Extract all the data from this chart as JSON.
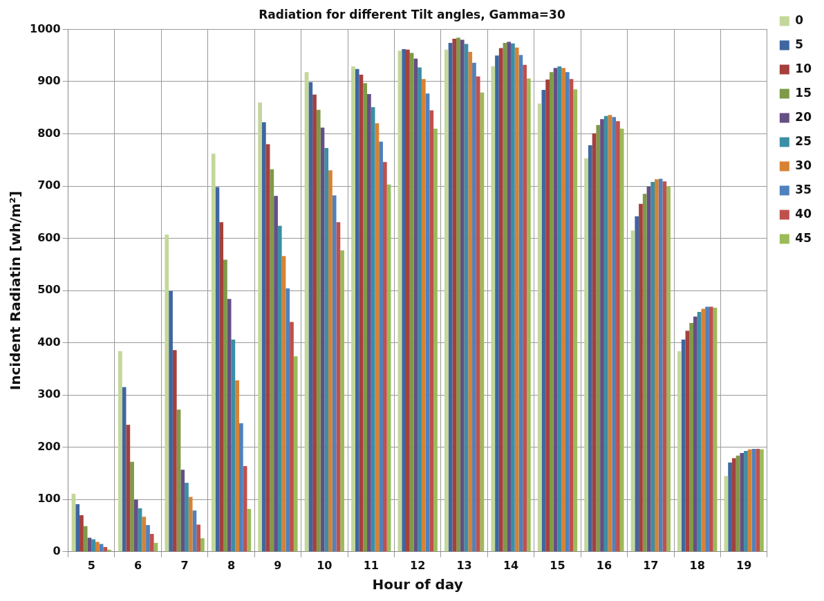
{
  "chart_data": {
    "type": "bar",
    "title": "Radiation for different Tilt angles, Gamma=30",
    "xlabel": "Hour of day",
    "ylabel": "Incident Radiatin [wh/m²]",
    "categories": [
      "5",
      "6",
      "7",
      "8",
      "9",
      "10",
      "11",
      "12",
      "13",
      "14",
      "15",
      "16",
      "17",
      "18",
      "19"
    ],
    "series": [
      {
        "name": "0",
        "color": "#c4d79b",
        "values": [
          111,
          384,
          607,
          762,
          860,
          918,
          929,
          959,
          961,
          929,
          858,
          753,
          615,
          384,
          145
        ]
      },
      {
        "name": "5",
        "color": "#3f66a0",
        "values": [
          91,
          315,
          499,
          698,
          822,
          899,
          924,
          962,
          974,
          950,
          884,
          778,
          642,
          406,
          171
        ]
      },
      {
        "name": "10",
        "color": "#a5403d",
        "values": [
          70,
          243,
          386,
          631,
          780,
          875,
          913,
          961,
          982,
          964,
          904,
          801,
          666,
          423,
          179
        ]
      },
      {
        "name": "15",
        "color": "#7f9a48",
        "values": [
          49,
          172,
          272,
          559,
          732,
          846,
          897,
          955,
          984,
          974,
          918,
          817,
          685,
          438,
          184
        ]
      },
      {
        "name": "20",
        "color": "#654f85",
        "values": [
          27,
          100,
          157,
          484,
          681,
          812,
          876,
          944,
          980,
          976,
          926,
          828,
          699,
          450,
          189
        ]
      },
      {
        "name": "25",
        "color": "#3b8fa5",
        "values": [
          24,
          83,
          132,
          406,
          624,
          773,
          851,
          927,
          972,
          973,
          929,
          834,
          708,
          459,
          193
        ]
      },
      {
        "name": "30",
        "color": "#d78234",
        "values": [
          19,
          67,
          105,
          328,
          566,
          730,
          820,
          905,
          957,
          965,
          926,
          836,
          713,
          465,
          196
        ]
      },
      {
        "name": "35",
        "color": "#4f81bd",
        "values": [
          15,
          51,
          79,
          246,
          504,
          682,
          785,
          877,
          936,
          951,
          918,
          832,
          714,
          469,
          197
        ]
      },
      {
        "name": "40",
        "color": "#c0504d",
        "values": [
          9,
          34,
          52,
          164,
          440,
          631,
          746,
          845,
          910,
          932,
          905,
          824,
          709,
          469,
          197
        ]
      },
      {
        "name": "45",
        "color": "#9bbb59",
        "values": [
          4,
          17,
          26,
          82,
          374,
          577,
          703,
          810,
          879,
          906,
          885,
          810,
          700,
          467,
          196
        ]
      }
    ],
    "ylim": [
      0,
      1000
    ],
    "yticks": [
      0,
      100,
      200,
      300,
      400,
      500,
      600,
      700,
      800,
      900,
      1000
    ],
    "grid": true,
    "legend": "right"
  }
}
